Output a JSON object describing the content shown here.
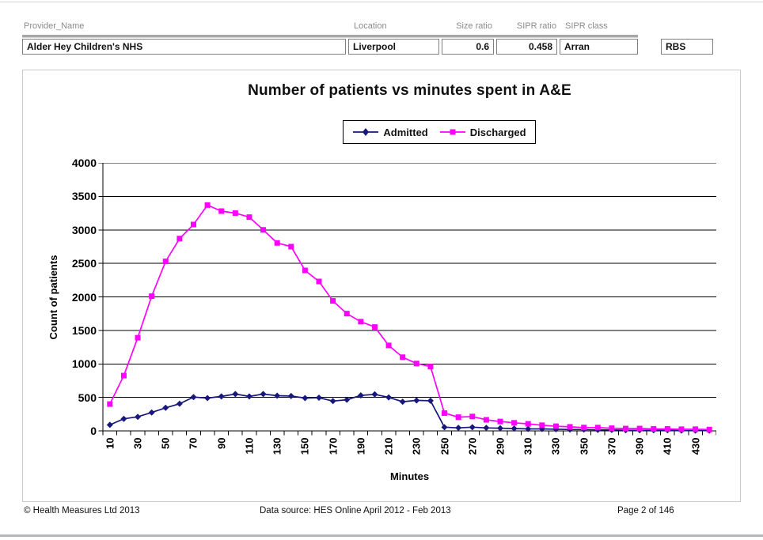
{
  "header": {
    "fields": [
      {
        "label": "Provider_Name",
        "value": "Alder Hey Children's NHS"
      },
      {
        "label": "Location",
        "value": "Liverpool"
      },
      {
        "label": "Size ratio",
        "value": "0.6"
      },
      {
        "label": "SIPR ratio",
        "value": "0.458"
      },
      {
        "label": "SIPR class",
        "value": "Arran"
      }
    ],
    "extra_value": "RBS"
  },
  "chart_data": {
    "type": "line",
    "title": "Number of patients vs minutes spent in A&E",
    "xlabel": "Minutes",
    "ylabel": "Count of patients",
    "ylim": [
      0,
      4000
    ],
    "ytick_step": 500,
    "grid": "horizontal",
    "legend_position": "top-center",
    "x": [
      10,
      20,
      30,
      40,
      50,
      60,
      70,
      80,
      90,
      100,
      110,
      120,
      130,
      140,
      150,
      160,
      170,
      180,
      190,
      200,
      210,
      220,
      230,
      240,
      250,
      260,
      270,
      280,
      290,
      300,
      310,
      320,
      330,
      340,
      350,
      360,
      370,
      380,
      390,
      400,
      410,
      420,
      430,
      440
    ],
    "x_tick_labels": [
      10,
      30,
      50,
      70,
      90,
      110,
      130,
      150,
      170,
      190,
      210,
      230,
      250,
      270,
      290,
      310,
      330,
      350,
      370,
      390,
      410,
      430
    ],
    "series": [
      {
        "name": "Admitted",
        "color": "#17177c",
        "marker": "diamond",
        "values": [
          90,
          180,
          210,
          275,
          345,
          405,
          505,
          490,
          515,
          550,
          515,
          550,
          525,
          520,
          490,
          495,
          445,
          465,
          530,
          545,
          500,
          435,
          455,
          450,
          55,
          45,
          55,
          45,
          40,
          35,
          30,
          30,
          25,
          20,
          20,
          15,
          15,
          10,
          10,
          10,
          10,
          5,
          5,
          5
        ]
      },
      {
        "name": "Discharged",
        "color": "#ff00ff",
        "marker": "square",
        "values": [
          400,
          825,
          1390,
          2010,
          2530,
          2870,
          3080,
          3370,
          3280,
          3250,
          3190,
          3000,
          2805,
          2750,
          2395,
          2230,
          1940,
          1750,
          1630,
          1550,
          1275,
          1100,
          1005,
          960,
          265,
          205,
          215,
          165,
          140,
          120,
          105,
          85,
          70,
          60,
          50,
          50,
          40,
          35,
          35,
          30,
          30,
          25,
          25,
          20
        ]
      }
    ]
  },
  "footer": {
    "copyright": "© Health Measures Ltd 2013",
    "datasource": "Data source:  HES Online April 2012 - Feb 2013",
    "page": "Page 2 of 146"
  }
}
